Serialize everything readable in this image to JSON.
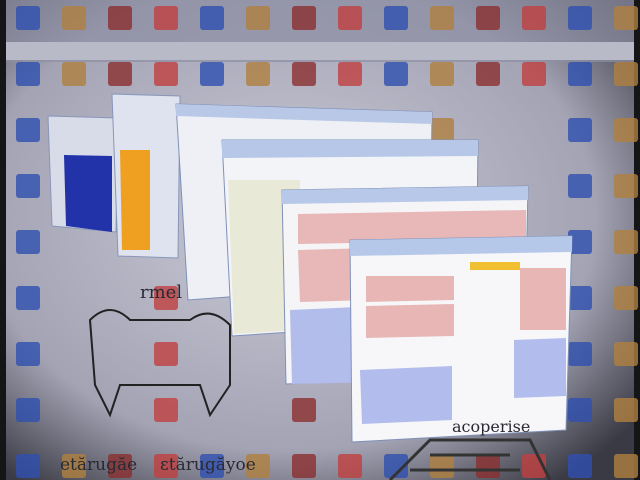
{
  "desktop_texts": [
    "rmel",
    "acoperise",
    "etărugăe",
    "ɛtărugăyoe"
  ]
}
